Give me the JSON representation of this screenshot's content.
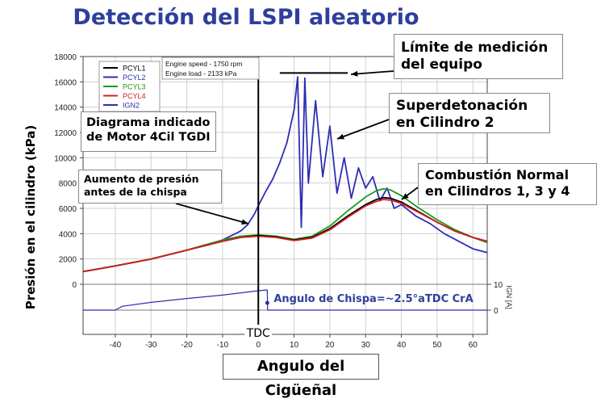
{
  "chart_data": {
    "type": "line",
    "title": "Detección del LSPI aleatorio",
    "xlabel": "Angulo del Cigüeñal",
    "ylabel": "Presión en el cilindro (kPa)",
    "ylabel2": "IGN [A]",
    "xlim": [
      -49,
      64
    ],
    "ylim": [
      0,
      18000
    ],
    "y2lim": [
      0,
      10
    ],
    "x_ticks": [
      -40,
      -30,
      -20,
      -10,
      0,
      10,
      20,
      30,
      40,
      50,
      60
    ],
    "y_ticks": [
      0,
      2000,
      4000,
      6000,
      8000,
      10000,
      12000,
      14000,
      16000,
      18000
    ],
    "y2_ticks": [
      0,
      10
    ],
    "grid": true,
    "legend": {
      "placement": "top-left",
      "entries": [
        {
          "name": "PCYL1",
          "color": "#000000"
        },
        {
          "name": "PCYL2",
          "color": "#2d2db4"
        },
        {
          "name": "PCYL3",
          "color": "#1a9a1a"
        },
        {
          "name": "PCYL4",
          "color": "#d42020"
        },
        {
          "name": "IGN2",
          "color": "#2d2db4"
        }
      ]
    },
    "info_box": {
      "line1": "Engine speed - 1750 rpm",
      "line2": "Engine load - 2133 kPa"
    },
    "series": [
      {
        "name": "PCYL1",
        "x": [
          -49,
          -40,
          -30,
          -20,
          -10,
          -5,
          0,
          5,
          10,
          15,
          20,
          25,
          30,
          33,
          35,
          37,
          40,
          45,
          50,
          55,
          60,
          64
        ],
        "y": [
          1000,
          1450,
          2000,
          2700,
          3400,
          3700,
          3850,
          3750,
          3500,
          3700,
          4400,
          5400,
          6300,
          6700,
          6850,
          6800,
          6500,
          5700,
          4900,
          4200,
          3700,
          3400
        ]
      },
      {
        "name": "PCYL2",
        "x": [
          -49,
          -40,
          -30,
          -20,
          -10,
          -5,
          -3,
          -1,
          0,
          2,
          4,
          6,
          8,
          10,
          11,
          12,
          13,
          14,
          16,
          18,
          20,
          22,
          24,
          26,
          28,
          30,
          32,
          34,
          36,
          38,
          40,
          44,
          48,
          52,
          56,
          60,
          64
        ],
        "y": [
          1000,
          1450,
          2000,
          2700,
          3500,
          4200,
          4700,
          5600,
          6200,
          7300,
          8300,
          9600,
          11200,
          13800,
          16400,
          4500,
          16300,
          8000,
          14500,
          8500,
          12500,
          7200,
          10000,
          6800,
          9200,
          7600,
          8500,
          6600,
          7600,
          6000,
          6300,
          5400,
          4800,
          4000,
          3400,
          2800,
          2500
        ]
      },
      {
        "name": "PCYL3",
        "x": [
          -49,
          -40,
          -30,
          -20,
          -10,
          -5,
          0,
          5,
          10,
          15,
          20,
          25,
          30,
          33,
          35,
          37,
          40,
          45,
          50,
          55,
          60,
          64
        ],
        "y": [
          1000,
          1450,
          2000,
          2700,
          3500,
          3800,
          3900,
          3800,
          3550,
          3800,
          4600,
          5800,
          6900,
          7400,
          7550,
          7450,
          7000,
          6000,
          5100,
          4300,
          3700,
          3300
        ]
      },
      {
        "name": "PCYL4",
        "x": [
          -49,
          -40,
          -30,
          -20,
          -10,
          -5,
          0,
          5,
          10,
          15,
          20,
          25,
          30,
          33,
          35,
          37,
          40,
          45,
          50,
          55,
          60,
          64
        ],
        "y": [
          1000,
          1450,
          2000,
          2700,
          3400,
          3700,
          3800,
          3700,
          3450,
          3650,
          4300,
          5300,
          6200,
          6550,
          6700,
          6650,
          6400,
          5650,
          4900,
          4200,
          3700,
          3400
        ]
      },
      {
        "name": "IGN2",
        "axis": "y2",
        "x": [
          -49,
          -40,
          -38,
          -30,
          -20,
          -10,
          0,
          2.5,
          2.6,
          30,
          64
        ],
        "y": [
          0,
          0,
          1.5,
          3,
          4.5,
          5.8,
          7.5,
          7.8,
          0,
          0,
          0
        ]
      }
    ],
    "annotations": [
      {
        "text": "TDC",
        "x": 0
      },
      {
        "text": "Angulo de Chispa=~2.5°aTDC CrA",
        "x": 2.5
      }
    ]
  },
  "callouts": {
    "limit": "Límite de medición del equipo",
    "super": "Superdetonación en Cilindro 2",
    "normal": "Combustión Normal en Cilindros 1,  3 y 4",
    "diagram": "Diagrama indicado de Motor 4Cil TGDI",
    "rise": "Aumento de presión antes de la chispa"
  }
}
